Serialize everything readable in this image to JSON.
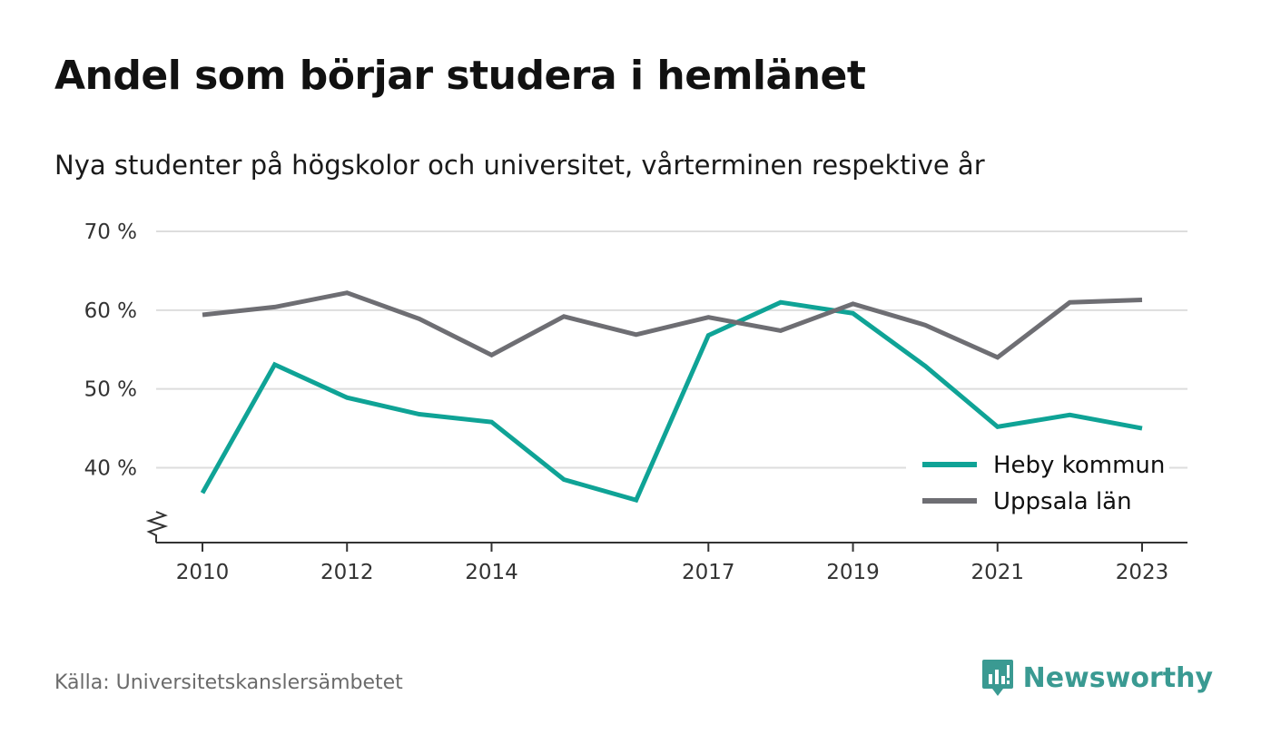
{
  "header": {
    "title": "Andel som börjar studera i hemlänet",
    "subtitle": "Nya studenter på högskolor och universitet, vårterminen respektive år"
  },
  "footer": {
    "source": "Källa: Universitetskanslersämbetet",
    "brand": "Newsworthy",
    "brand_icon": "newsworthy-logo-icon"
  },
  "colors": {
    "heby": "#0fa396",
    "uppsala": "#6e6e73",
    "grid": "#dddddd",
    "axis": "#333333",
    "brand": "#3a9a92"
  },
  "chart_data": {
    "type": "line",
    "x": [
      2010,
      2011,
      2012,
      2013,
      2014,
      2015,
      2016,
      2017,
      2018,
      2019,
      2020,
      2021,
      2022,
      2023
    ],
    "x_tick_labels": [
      "2010",
      "2012",
      "2014",
      "2017",
      "2019",
      "2021",
      "2023"
    ],
    "x_tick_values": [
      2010,
      2012,
      2014,
      2017,
      2019,
      2021,
      2023
    ],
    "y_tick_values": [
      40,
      50,
      60,
      70
    ],
    "y_tick_labels": [
      "40 %",
      "50 %",
      "60 %",
      "70 %"
    ],
    "ylim": [
      30.5,
      70
    ],
    "y_axis_break": true,
    "grid": true,
    "legend_position": "bottom-right",
    "series": [
      {
        "name": "Heby kommun",
        "color": "#0fa396",
        "values": [
          36.8,
          53.1,
          48.9,
          46.8,
          45.8,
          38.5,
          35.9,
          56.8,
          61.0,
          59.6,
          52.9,
          45.2,
          46.7,
          45.0
        ]
      },
      {
        "name": "Uppsala län",
        "color": "#6e6e73",
        "values": [
          59.4,
          60.4,
          62.2,
          58.9,
          54.3,
          59.2,
          56.9,
          59.1,
          57.4,
          60.8,
          58.1,
          54.0,
          61.0,
          61.3
        ]
      }
    ]
  }
}
